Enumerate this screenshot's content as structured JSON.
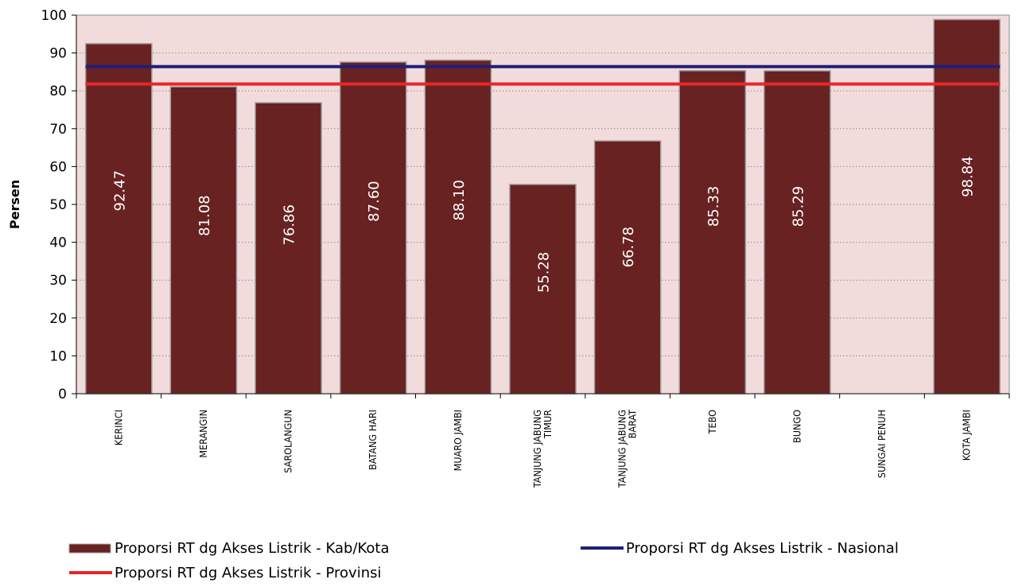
{
  "chart_data": {
    "type": "bar",
    "categories": [
      [
        "KERINCI"
      ],
      [
        "MERANGIN"
      ],
      [
        "SAROLANGUN"
      ],
      [
        "BATANG HARI"
      ],
      [
        "MUARO JAMBI"
      ],
      [
        "TANJUNG JABUNG",
        "TIMUR"
      ],
      [
        "TANJUNG JABUNG",
        "BARAT"
      ],
      [
        "TEBO"
      ],
      [
        "BUNGO"
      ],
      [
        "SUNGAI PENUH"
      ],
      [
        "KOTA JAMBI"
      ]
    ],
    "values": [
      92.47,
      81.08,
      76.86,
      87.6,
      88.1,
      55.28,
      66.78,
      85.33,
      85.29,
      null,
      98.84
    ],
    "value_labels": [
      "92.47",
      "81.08",
      "76.86",
      "87.60",
      "88.10",
      "55.28",
      "66.78",
      "85.33",
      "85.29",
      "",
      "98.84"
    ],
    "ylabel": "Persen",
    "ylim": [
      0,
      100
    ],
    "yticks": [
      0,
      10,
      20,
      30,
      40,
      50,
      60,
      70,
      80,
      90,
      100
    ],
    "reference_lines": [
      {
        "name": "Proporsi RT dg Akses Listrik - Nasional",
        "value": 86.4,
        "color": "#1f1f7a"
      },
      {
        "name": "Proporsi RT dg Akses Listrik - Provinsi",
        "value": 81.8,
        "color": "#e8262b"
      }
    ],
    "series_name": "Proporsi RT dg Akses Listrik - Kab/Kota",
    "colors": {
      "bar": "#682222",
      "bar_border": "#a0a0a0",
      "plot_background": "#f2dcdb",
      "grid": "#8c8c8c"
    },
    "grid": true,
    "legend_position": "bottom"
  },
  "legend": [
    {
      "label": "Proporsi RT dg Akses Listrik - Kab/Kota",
      "kind": "bar"
    },
    {
      "label": "Proporsi RT dg Akses Listrik - Nasional",
      "kind": "line",
      "color": "#1f1f7a"
    },
    {
      "label": "Proporsi RT dg Akses Listrik - Provinsi",
      "kind": "line",
      "color": "#e8262b"
    }
  ]
}
